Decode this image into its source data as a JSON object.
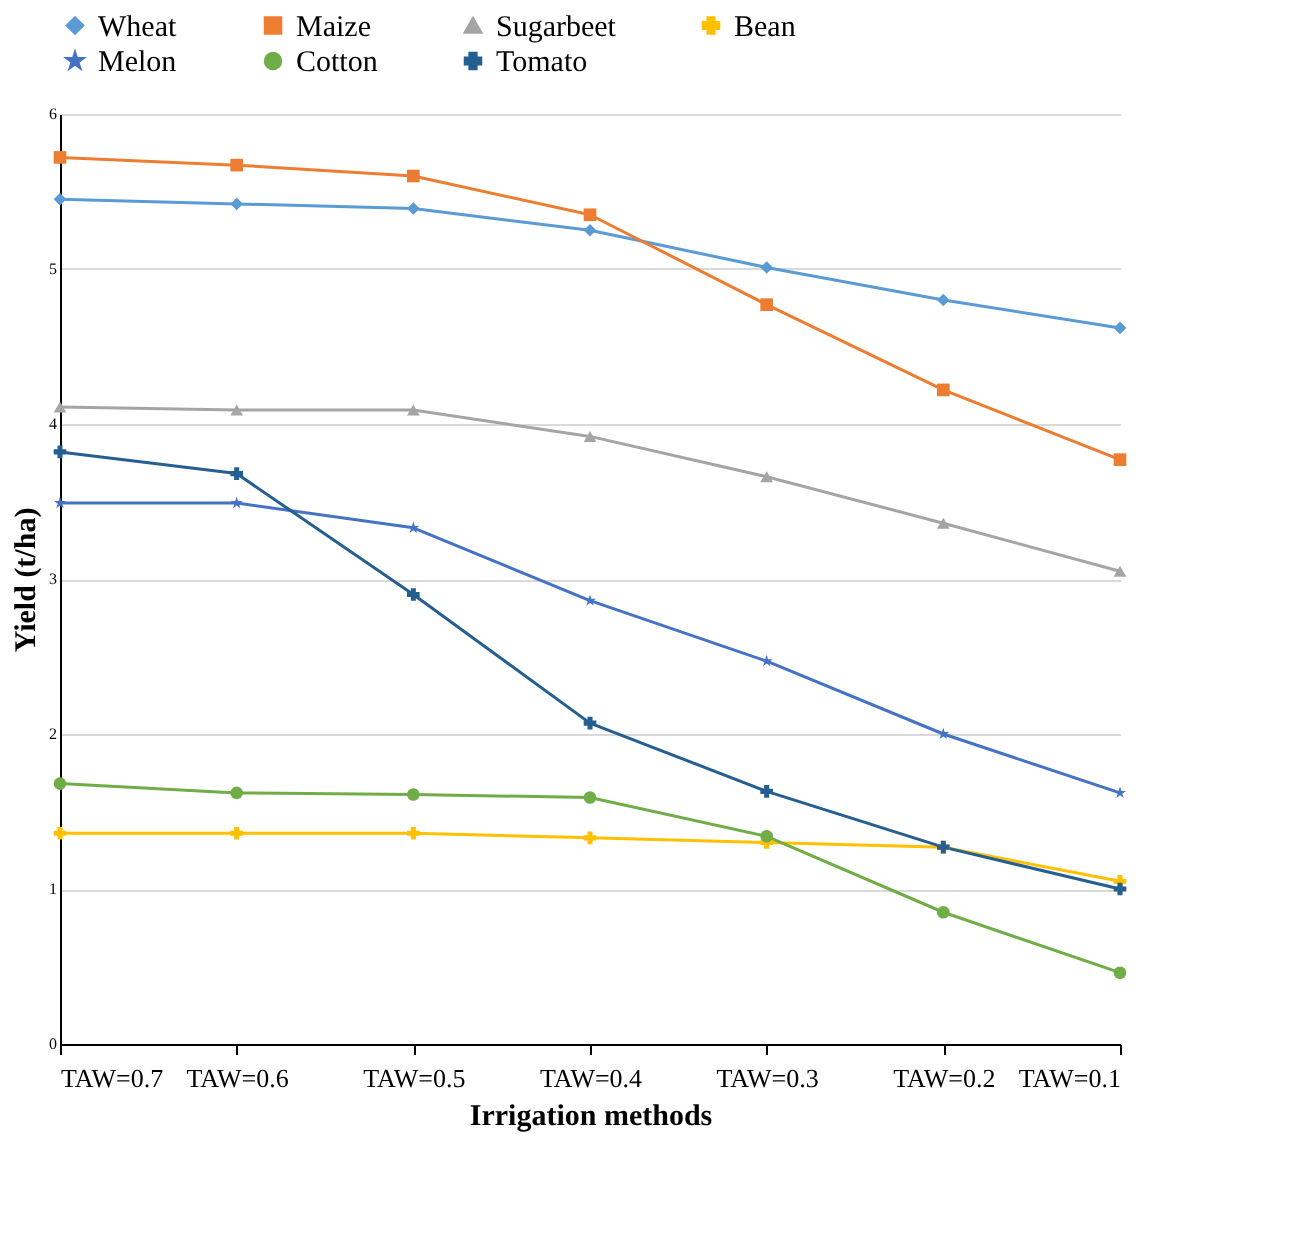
{
  "chart_data": {
    "type": "line",
    "xlabel": "Irrigation methods",
    "ylabel": "Yield (t/ha)",
    "categories": [
      "TAW=0.7",
      "TAW=0.6",
      "TAW=0.5",
      "TAW=0.4",
      "TAW=0.3",
      "TAW=0.2",
      "TAW=0.1"
    ],
    "series": [
      {
        "name": "Wheat",
        "color": "#5b9bd5",
        "marker": "diamond",
        "values": [
          5.45,
          5.42,
          5.39,
          5.25,
          5.01,
          4.8,
          4.62
        ]
      },
      {
        "name": "Maize",
        "color": "#ed7d31",
        "marker": "square",
        "values": [
          5.72,
          5.67,
          5.6,
          5.35,
          4.77,
          4.22,
          3.77
        ]
      },
      {
        "name": "Sugarbeet",
        "color": "#a5a5a5",
        "marker": "triangle",
        "values": [
          4.11,
          4.09,
          4.09,
          3.92,
          3.66,
          3.36,
          3.05
        ]
      },
      {
        "name": "Bean",
        "color": "#ffc000",
        "marker": "cross",
        "values": [
          1.36,
          1.36,
          1.36,
          1.33,
          1.3,
          1.27,
          1.05
        ]
      },
      {
        "name": "Melon",
        "color": "#4472c4",
        "marker": "star",
        "values": [
          3.49,
          3.49,
          3.33,
          2.86,
          2.47,
          2.0,
          1.62
        ]
      },
      {
        "name": "Cotton",
        "color": "#70ad47",
        "marker": "circle",
        "values": [
          1.68,
          1.62,
          1.61,
          1.59,
          1.34,
          0.85,
          0.46
        ]
      },
      {
        "name": "Tomato",
        "color": "#255e91",
        "marker": "cross",
        "values": [
          3.82,
          3.68,
          2.9,
          2.07,
          1.63,
          1.27,
          1.0
        ]
      }
    ],
    "ylim": [
      0,
      6
    ],
    "yticks": [
      0,
      1,
      2,
      3,
      4,
      5,
      6
    ],
    "grid": "y",
    "legend": "top",
    "line_style": "solid"
  }
}
